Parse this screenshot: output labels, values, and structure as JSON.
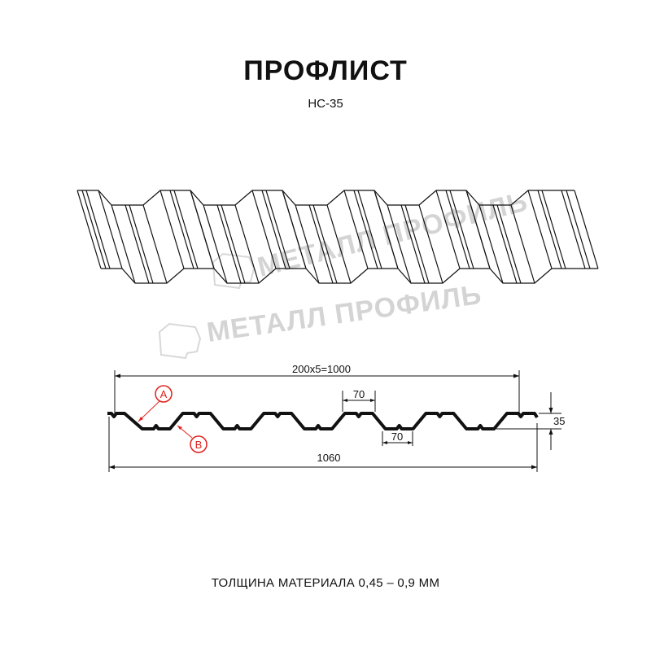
{
  "header": {
    "title": "ПРОФЛИСТ",
    "model": "НС-35"
  },
  "watermark": "МЕТАЛЛ ПРОФИЛЬ",
  "drawing": {
    "overall_width_label": "1060",
    "useful_width_label": "200x5=1000",
    "top_rib_width_label": "70",
    "bottom_rib_width_label": "70",
    "height_label": "35",
    "callout_a": "A",
    "callout_b": "B"
  },
  "colors": {
    "line": "#111111",
    "callout": "#e0201c",
    "watermark": "#d4d4d4"
  },
  "footer": {
    "thickness": "ТОЛЩИНА МАТЕРИАЛА 0,45 – 0,9 ММ"
  }
}
